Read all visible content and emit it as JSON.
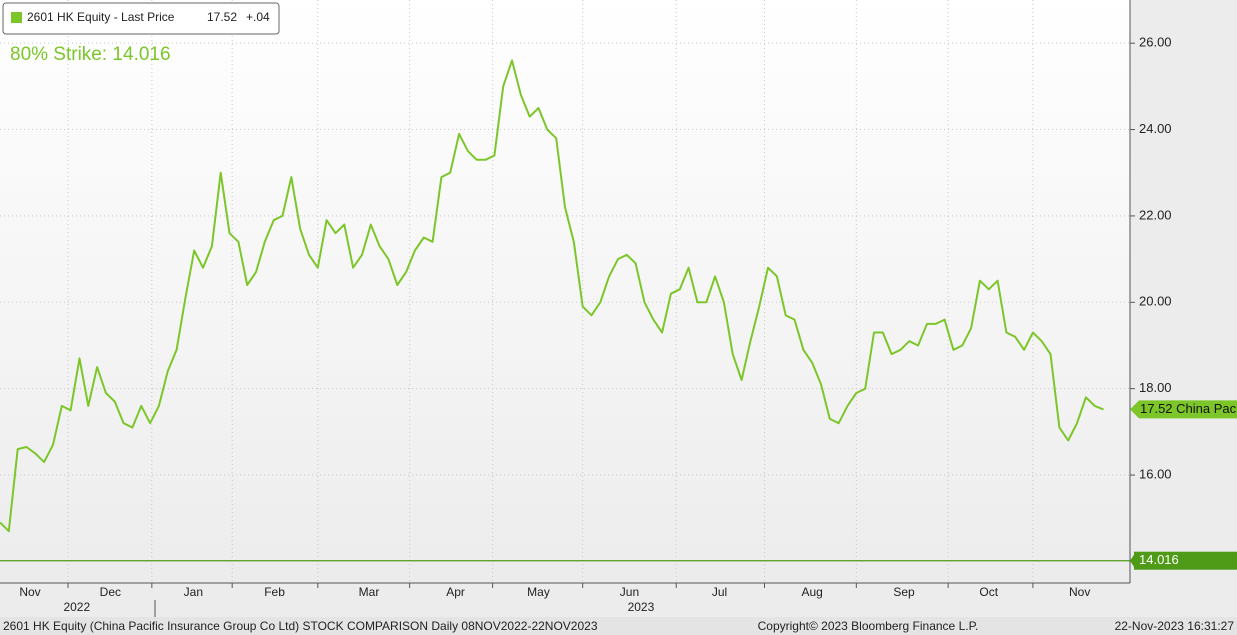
{
  "chart_data": {
    "type": "line",
    "legend": {
      "name": "2601 HK Equity - Last Price",
      "last": "17.52",
      "change": "+.04"
    },
    "annotation": "80% Strike: 14.016",
    "series": [
      {
        "name": "2601 HK Equity - Last Price",
        "color": "#7cc62a",
        "values": [
          14.9,
          14.7,
          16.6,
          16.65,
          16.5,
          16.3,
          16.7,
          17.6,
          17.5,
          18.7,
          17.6,
          18.5,
          17.9,
          17.7,
          17.2,
          17.1,
          17.6,
          17.2,
          17.6,
          18.4,
          18.9,
          20.1,
          21.2,
          20.8,
          21.3,
          23.0,
          21.6,
          21.4,
          20.4,
          20.7,
          21.4,
          21.9,
          22.0,
          22.9,
          21.7,
          21.1,
          20.8,
          21.9,
          21.6,
          21.8,
          20.8,
          21.1,
          21.8,
          21.3,
          21.0,
          20.4,
          20.7,
          21.2,
          21.5,
          21.4,
          22.9,
          23.0,
          23.9,
          23.5,
          23.3,
          23.3,
          23.4,
          25.0,
          25.6,
          24.8,
          24.3,
          24.5,
          24.0,
          23.8,
          22.2,
          21.4,
          19.9,
          19.7,
          20.0,
          20.6,
          21.0,
          21.1,
          20.9,
          20.0,
          19.6,
          19.3,
          20.2,
          20.3,
          20.8,
          20.0,
          20.0,
          20.6,
          20.0,
          18.8,
          18.2,
          19.1,
          19.9,
          20.8,
          20.6,
          19.7,
          19.6,
          18.9,
          18.6,
          18.1,
          17.3,
          17.2,
          17.6,
          17.9,
          18.0,
          19.3,
          19.3,
          18.8,
          18.9,
          19.1,
          19.0,
          19.5,
          19.5,
          19.6,
          18.9,
          19.0,
          19.4,
          20.5,
          20.3,
          20.5,
          19.3,
          19.2,
          18.9,
          19.3,
          19.1,
          18.8,
          17.1,
          16.8,
          17.2,
          17.8,
          17.6,
          17.52
        ]
      }
    ],
    "last_tag": {
      "value": 17.52,
      "label": "17.52 China Pac"
    },
    "strike": {
      "value": 14.016,
      "label": "14.016",
      "color": "#4f9a16"
    },
    "xlim": [
      0,
      128
    ],
    "ylim": [
      13.5,
      27
    ],
    "yticks": [
      {
        "value": 16,
        "label": "16.00"
      },
      {
        "value": 18,
        "label": "18.00"
      },
      {
        "value": 20,
        "label": "20.00"
      },
      {
        "value": 22,
        "label": "22.00"
      },
      {
        "value": 24,
        "label": "24.00"
      },
      {
        "value": 26,
        "label": "26.00"
      }
    ],
    "xticks": [
      {
        "value": 3.4,
        "label": "Nov"
      },
      {
        "value": 12.5,
        "label": "Dec"
      },
      {
        "value": 21.9,
        "label": "Jan"
      },
      {
        "value": 31.1,
        "label": "Feb"
      },
      {
        "value": 41.8,
        "label": "Mar"
      },
      {
        "value": 51.6,
        "label": "Apr"
      },
      {
        "value": 61,
        "label": "May"
      },
      {
        "value": 71.3,
        "label": "Jun"
      },
      {
        "value": 81.5,
        "label": "Jul"
      },
      {
        "value": 92,
        "label": "Aug"
      },
      {
        "value": 102.4,
        "label": "Sep"
      },
      {
        "value": 112,
        "label": "Oct"
      },
      {
        "value": 122.3,
        "label": "Nov"
      }
    ],
    "xgrid": [
      7.7,
      17.2,
      26.3,
      36,
      46.4,
      55.8,
      66,
      76.6,
      86.6,
      97,
      107.4,
      117
    ],
    "years": [
      {
        "value": 8.7,
        "label": "2022"
      },
      {
        "value": 72.6,
        "label": "2023"
      }
    ],
    "grid": true,
    "footer": {
      "left": "2601 HK Equity (China Pacific Insurance Group Co Ltd) STOCK COMPARISON  Daily 08NOV2022-22NOV2023",
      "center": "Copyright© 2023 Bloomberg Finance L.P.",
      "right": "22-Nov-2023 16:31:27"
    }
  }
}
